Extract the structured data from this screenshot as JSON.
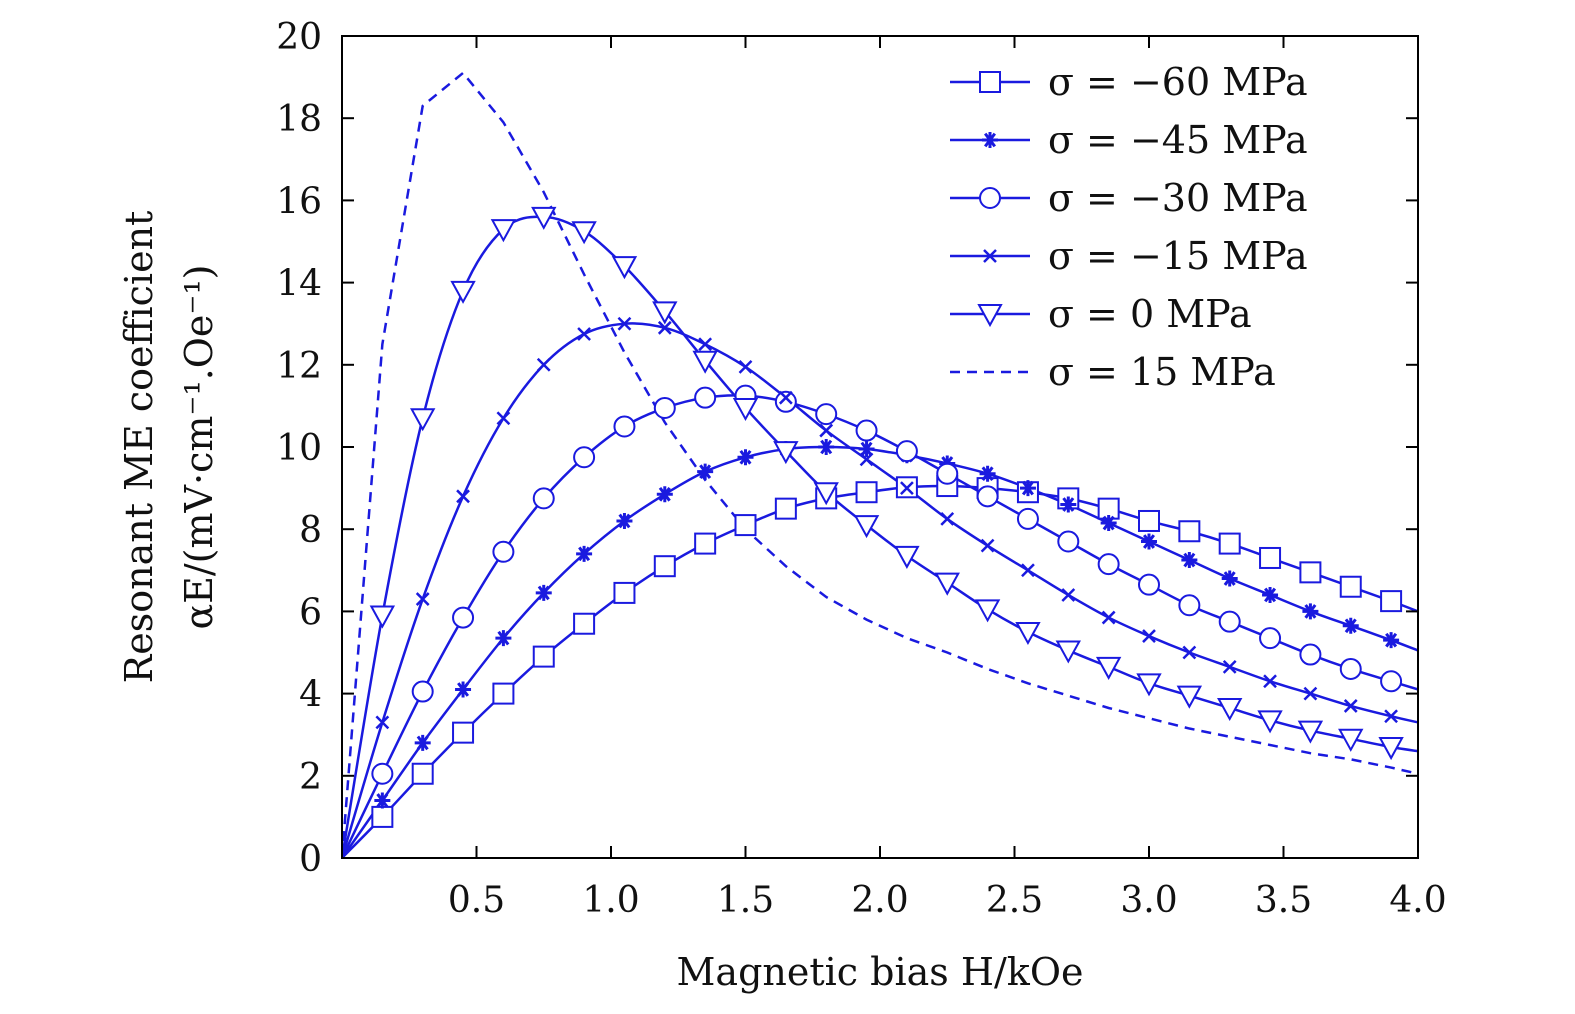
{
  "chart_data": {
    "type": "line",
    "title": "",
    "xlabel": "Magnetic bias H/kOe",
    "ylabel_line1": "Resonant ME coefficient",
    "ylabel_line2": "αE/(mV·cm⁻¹.Oe⁻¹)",
    "xlim": [
      0,
      4.0
    ],
    "ylim": [
      0,
      20
    ],
    "xticks": [
      0.5,
      1.0,
      1.5,
      2.0,
      2.5,
      3.0,
      3.5,
      4.0
    ],
    "xtick_labels": [
      "0.5",
      "1.0",
      "1.5",
      "2.0",
      "2.5",
      "3.0",
      "3.5",
      "4.0"
    ],
    "yticks": [
      0,
      2,
      4,
      6,
      8,
      10,
      12,
      14,
      16,
      18,
      20
    ],
    "ytick_labels": [
      "0",
      "2",
      "4",
      "6",
      "8",
      "10",
      "12",
      "14",
      "16",
      "18",
      "20"
    ],
    "legend_position": "top-right",
    "line_color": "#1a1adf",
    "series": [
      {
        "name": "σ = −60 MPa",
        "marker": "square",
        "dashed": false,
        "x": [
          0,
          0.15,
          0.3,
          0.45,
          0.6,
          0.75,
          0.9,
          1.05,
          1.2,
          1.35,
          1.5,
          1.65,
          1.8,
          1.95,
          2.1,
          2.25,
          2.4,
          2.55,
          2.7,
          2.85,
          3.0,
          3.15,
          3.3,
          3.45,
          3.6,
          3.75,
          3.9,
          4.0
        ],
        "y": [
          0,
          1.0,
          2.05,
          3.05,
          4.0,
          4.9,
          5.7,
          6.45,
          7.1,
          7.65,
          8.1,
          8.5,
          8.75,
          8.9,
          9.02,
          9.05,
          9.0,
          8.9,
          8.75,
          8.5,
          8.2,
          7.95,
          7.65,
          7.3,
          6.95,
          6.6,
          6.25,
          6.0
        ],
        "marked": [
          false,
          true,
          true,
          true,
          true,
          true,
          true,
          true,
          true,
          true,
          true,
          true,
          true,
          true,
          true,
          true,
          true,
          true,
          true,
          true,
          true,
          true,
          true,
          true,
          true,
          true,
          true,
          false
        ]
      },
      {
        "name": "σ = −45 MPa",
        "marker": "star",
        "dashed": false,
        "x": [
          0,
          0.15,
          0.3,
          0.45,
          0.6,
          0.75,
          0.9,
          1.05,
          1.2,
          1.35,
          1.5,
          1.65,
          1.8,
          1.95,
          2.1,
          2.25,
          2.4,
          2.55,
          2.7,
          2.85,
          3.0,
          3.15,
          3.3,
          3.45,
          3.6,
          3.75,
          3.9,
          4.0
        ],
        "y": [
          0,
          1.4,
          2.8,
          4.1,
          5.35,
          6.45,
          7.4,
          8.2,
          8.85,
          9.4,
          9.75,
          9.95,
          10.0,
          9.95,
          9.8,
          9.6,
          9.35,
          9.0,
          8.6,
          8.15,
          7.7,
          7.25,
          6.8,
          6.4,
          6.0,
          5.65,
          5.3,
          5.05
        ],
        "marked": [
          false,
          true,
          true,
          true,
          true,
          true,
          true,
          true,
          true,
          true,
          true,
          true,
          true,
          true,
          true,
          true,
          true,
          true,
          true,
          true,
          true,
          true,
          true,
          true,
          true,
          true,
          true,
          false
        ]
      },
      {
        "name": "σ = −30 MPa",
        "marker": "circle",
        "dashed": false,
        "x": [
          0,
          0.15,
          0.3,
          0.45,
          0.6,
          0.75,
          0.9,
          1.05,
          1.2,
          1.35,
          1.5,
          1.65,
          1.8,
          1.95,
          2.1,
          2.25,
          2.4,
          2.55,
          2.7,
          2.85,
          3.0,
          3.15,
          3.3,
          3.45,
          3.6,
          3.75,
          3.9,
          4.0
        ],
        "y": [
          0,
          2.05,
          4.05,
          5.85,
          7.45,
          8.75,
          9.75,
          10.5,
          10.95,
          11.2,
          11.25,
          11.1,
          10.8,
          10.4,
          9.9,
          9.35,
          8.8,
          8.25,
          7.7,
          7.15,
          6.65,
          6.15,
          5.75,
          5.35,
          4.95,
          4.6,
          4.3,
          4.1
        ],
        "marked": [
          false,
          true,
          true,
          true,
          true,
          true,
          true,
          true,
          true,
          true,
          true,
          true,
          true,
          true,
          true,
          true,
          true,
          true,
          true,
          true,
          true,
          true,
          true,
          true,
          true,
          true,
          true,
          false
        ]
      },
      {
        "name": "σ = −15 MPa",
        "marker": "x",
        "dashed": false,
        "x": [
          0,
          0.15,
          0.3,
          0.45,
          0.6,
          0.75,
          0.9,
          1.05,
          1.2,
          1.35,
          1.5,
          1.65,
          1.8,
          1.95,
          2.1,
          2.25,
          2.4,
          2.55,
          2.7,
          2.85,
          3.0,
          3.15,
          3.3,
          3.45,
          3.6,
          3.75,
          3.9,
          4.0
        ],
        "y": [
          0,
          3.3,
          6.3,
          8.8,
          10.7,
          12.0,
          12.75,
          13.0,
          12.9,
          12.5,
          11.95,
          11.2,
          10.4,
          9.7,
          9.0,
          8.25,
          7.6,
          7.0,
          6.4,
          5.85,
          5.4,
          5.0,
          4.65,
          4.3,
          4.0,
          3.7,
          3.45,
          3.3
        ],
        "marked": [
          false,
          true,
          true,
          true,
          true,
          true,
          true,
          true,
          true,
          true,
          true,
          true,
          true,
          true,
          true,
          true,
          true,
          true,
          true,
          true,
          true,
          true,
          true,
          true,
          true,
          true,
          true,
          false
        ]
      },
      {
        "name": "σ = 0 MPa",
        "marker": "triangle-down",
        "dashed": false,
        "x": [
          0,
          0.15,
          0.3,
          0.45,
          0.6,
          0.75,
          0.9,
          1.05,
          1.2,
          1.35,
          1.5,
          1.65,
          1.8,
          1.95,
          2.1,
          2.25,
          2.4,
          2.55,
          2.7,
          2.85,
          3.0,
          3.15,
          3.3,
          3.45,
          3.6,
          3.75,
          3.9,
          4.0
        ],
        "y": [
          0,
          5.9,
          10.7,
          13.8,
          15.3,
          15.6,
          15.25,
          14.4,
          13.3,
          12.1,
          10.95,
          9.9,
          8.9,
          8.1,
          7.35,
          6.7,
          6.05,
          5.5,
          5.05,
          4.65,
          4.25,
          3.95,
          3.65,
          3.35,
          3.1,
          2.9,
          2.7,
          2.6
        ],
        "marked": [
          false,
          true,
          true,
          true,
          true,
          true,
          true,
          true,
          true,
          true,
          true,
          true,
          true,
          true,
          true,
          true,
          true,
          true,
          true,
          true,
          true,
          true,
          true,
          true,
          true,
          true,
          true,
          false
        ]
      },
      {
        "name": "σ = 15 MPa",
        "marker": "none",
        "dashed": true,
        "x": [
          0,
          0.15,
          0.3,
          0.45,
          0.6,
          0.75,
          0.9,
          1.05,
          1.2,
          1.35,
          1.5,
          1.65,
          1.8,
          1.95,
          2.1,
          2.25,
          2.4,
          2.55,
          2.7,
          2.85,
          3.0,
          3.15,
          3.3,
          3.45,
          3.6,
          3.75,
          3.9,
          4.0
        ],
        "y": [
          0,
          12.5,
          18.3,
          19.1,
          17.9,
          16.2,
          14.2,
          12.3,
          10.6,
          9.2,
          8.0,
          7.1,
          6.35,
          5.8,
          5.35,
          5.0,
          4.6,
          4.25,
          3.95,
          3.65,
          3.4,
          3.15,
          2.95,
          2.75,
          2.55,
          2.4,
          2.2,
          2.05
        ],
        "marked": []
      }
    ]
  }
}
